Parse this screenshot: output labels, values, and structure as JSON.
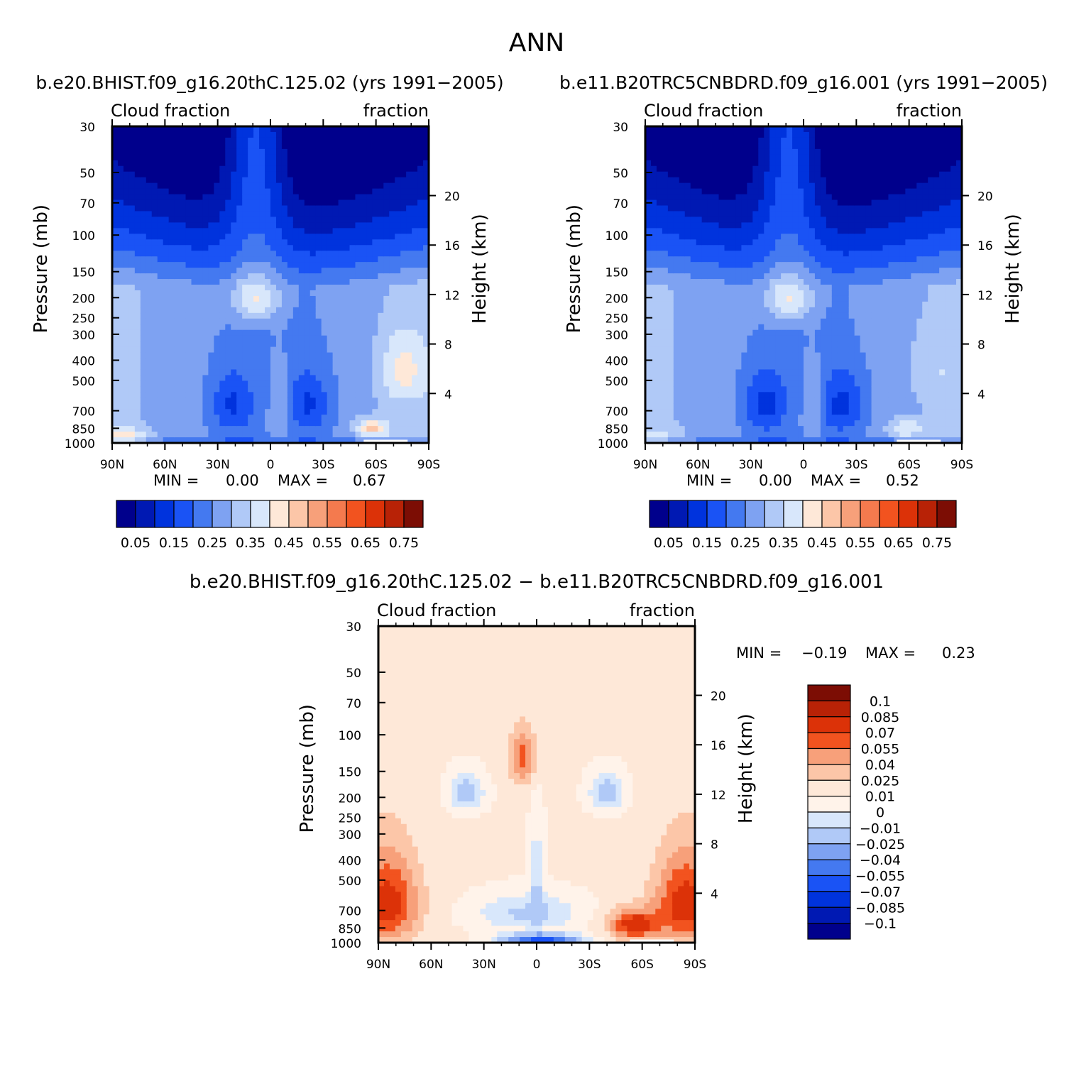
{
  "figure": {
    "title": "ANN",
    "difference_title": "b.e20.BHIST.f09_g16.20thC.125.02  −  b.e11.B20TRC5CNBDRD.f09_g16.001"
  },
  "chart_data": [
    {
      "type": "heatmap",
      "panel": "case-1",
      "title": "b.e20.BHIST.f09_g16.20thC.125.02 (yrs 1991−2005)",
      "subtitle_left": "Cloud fraction",
      "subtitle_right": "fraction",
      "xlabel": "",
      "ylabel": "Pressure (mb)",
      "ylabel_right": "Height (km)",
      "x_ticks": [
        "90N",
        "60N",
        "30N",
        "0",
        "30S",
        "60S",
        "90S"
      ],
      "x_range": [
        90,
        -90
      ],
      "y_ticks": [
        30,
        50,
        70,
        100,
        150,
        200,
        250,
        300,
        400,
        500,
        700,
        850,
        1000
      ],
      "y_axis": "pressure (log scale, inverted)",
      "y_ticks_right": [
        20,
        16,
        12,
        8,
        4
      ],
      "min_label": "MIN =",
      "min_value": "0.00",
      "max_label": "MAX =",
      "max_value": "0.67",
      "colorbar": {
        "orientation": "horizontal",
        "levels": [
          0.05,
          0.1,
          0.15,
          0.2,
          0.25,
          0.3,
          0.35,
          0.4,
          0.45,
          0.5,
          0.55,
          0.6,
          0.65,
          0.7,
          0.75
        ],
        "labels": [
          "0.05",
          "0.15",
          "0.25",
          "0.35",
          "0.45",
          "0.55",
          "0.65",
          "0.75"
        ],
        "colors": [
          "#00008c",
          "#0019b3",
          "#0033dd",
          "#1a53f5",
          "#4479f0",
          "#7ea2f2",
          "#b0c9f7",
          "#d8e7fb",
          "#fee8d8",
          "#fcc6a8",
          "#f7a07a",
          "#f47a4e",
          "#f2531f",
          "#dc3208",
          "#b82206",
          "#7c0d04"
        ]
      }
    },
    {
      "type": "heatmap",
      "panel": "case-2",
      "title": "b.e11.B20TRC5CNBDRD.f09_g16.001 (yrs 1991−2005)",
      "subtitle_left": "Cloud fraction",
      "subtitle_right": "fraction",
      "xlabel": "",
      "ylabel": "Pressure (mb)",
      "ylabel_right": "Height (km)",
      "x_ticks": [
        "90N",
        "60N",
        "30N",
        "0",
        "30S",
        "60S",
        "90S"
      ],
      "x_range": [
        90,
        -90
      ],
      "y_ticks": [
        30,
        50,
        70,
        100,
        150,
        200,
        250,
        300,
        400,
        500,
        700,
        850,
        1000
      ],
      "y_axis": "pressure (log scale, inverted)",
      "y_ticks_right": [
        20,
        16,
        12,
        8,
        4
      ],
      "min_label": "MIN =",
      "min_value": "0.00",
      "max_label": "MAX =",
      "max_value": "0.52",
      "colorbar": {
        "orientation": "horizontal",
        "levels": [
          0.05,
          0.1,
          0.15,
          0.2,
          0.25,
          0.3,
          0.35,
          0.4,
          0.45,
          0.5,
          0.55,
          0.6,
          0.65,
          0.7,
          0.75
        ],
        "labels": [
          "0.05",
          "0.15",
          "0.25",
          "0.35",
          "0.45",
          "0.55",
          "0.65",
          "0.75"
        ],
        "colors": [
          "#00008c",
          "#0019b3",
          "#0033dd",
          "#1a53f5",
          "#4479f0",
          "#7ea2f2",
          "#b0c9f7",
          "#d8e7fb",
          "#fee8d8",
          "#fcc6a8",
          "#f7a07a",
          "#f47a4e",
          "#f2531f",
          "#dc3208",
          "#b82206",
          "#7c0d04"
        ]
      }
    },
    {
      "type": "heatmap",
      "panel": "difference",
      "title": "b.e20.BHIST.f09_g16.20thC.125.02  −  b.e11.B20TRC5CNBDRD.f09_g16.001",
      "subtitle_left": "Cloud fraction",
      "subtitle_right": "fraction",
      "xlabel": "",
      "ylabel": "Pressure (mb)",
      "ylabel_right": "Height (km)",
      "x_ticks": [
        "90N",
        "60N",
        "30N",
        "0",
        "30S",
        "60S",
        "90S"
      ],
      "x_range": [
        90,
        -90
      ],
      "y_ticks": [
        30,
        50,
        70,
        100,
        150,
        200,
        250,
        300,
        400,
        500,
        700,
        850,
        1000
      ],
      "y_axis": "pressure (log scale, inverted)",
      "y_ticks_right": [
        20,
        16,
        12,
        8,
        4
      ],
      "min_label": "MIN =",
      "min_value": "−0.19",
      "max_label": "MAX =",
      "max_value": "0.23",
      "colorbar": {
        "orientation": "vertical",
        "labels": [
          "0.1",
          "0.085",
          "0.07",
          "0.055",
          "0.04",
          "0.025",
          "0.01",
          "0",
          "−0.01",
          "−0.025",
          "−0.04",
          "−0.055",
          "−0.07",
          "−0.085",
          "−0.1"
        ],
        "colors": [
          "#7c0d04",
          "#b82206",
          "#dc3208",
          "#f2531f",
          "#f7a07a",
          "#fcc6a8",
          "#fee8d8",
          "#fff3ea",
          "#d8e7fb",
          "#b0c9f7",
          "#7ea2f2",
          "#4479f0",
          "#1a53f5",
          "#0033dd",
          "#0019b3",
          "#00008c"
        ]
      }
    }
  ]
}
